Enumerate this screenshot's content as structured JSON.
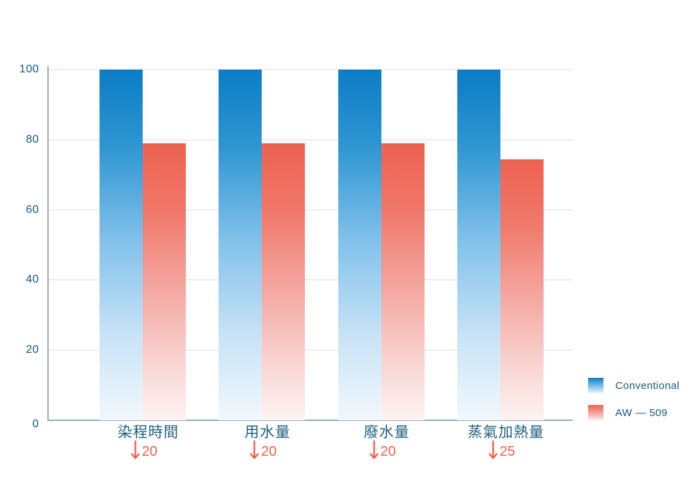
{
  "chart_data": {
    "type": "bar",
    "title": "",
    "xlabel": "",
    "ylabel": "",
    "categories": [
      "染程時間",
      "用水量",
      "廢水量",
      "蒸氣加熱量"
    ],
    "series": [
      {
        "name": "Conventional",
        "values": [
          100,
          100,
          100,
          100
        ]
      },
      {
        "name": "AW — 509",
        "values": [
          79,
          79,
          79,
          74.5
        ]
      }
    ],
    "reduction_labels": [
      {
        "arrow": "down",
        "value": "20"
      },
      {
        "arrow": "down",
        "value": "20"
      },
      {
        "arrow": "down",
        "value": "20"
      },
      {
        "arrow": "down",
        "value": "25"
      }
    ],
    "ylim": [
      0,
      100
    ],
    "yticks": [
      0,
      20,
      40,
      60,
      80,
      100
    ],
    "grid": "horizontal",
    "legend_position": "bottom-right"
  },
  "colors": {
    "blue_top": "#0c7dc5",
    "blue_bottom": "#f2f8fd",
    "red_top": "#ee6150",
    "red_bottom": "#fdf3f2",
    "axis_line": "#92aec3",
    "gridline": "#ededed",
    "text_blue": "#19587e",
    "text_red": "#ef6150",
    "background": "#ffffff"
  }
}
